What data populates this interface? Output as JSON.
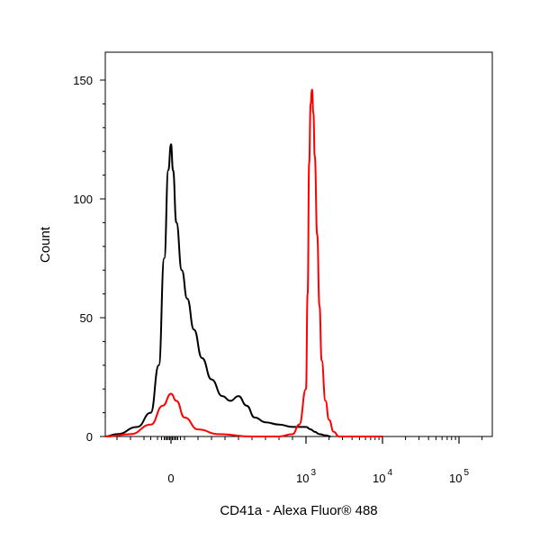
{
  "chart_data": {
    "type": "line",
    "title": "",
    "xlabel": "CD41a - Alexa Fluor® 488",
    "ylabel": "Count",
    "x_scale": "biexponential",
    "x_tick_labels": [
      {
        "base": "0",
        "exp": ""
      },
      {
        "base": "10",
        "exp": "3"
      },
      {
        "base": "10",
        "exp": "4"
      },
      {
        "base": "10",
        "exp": "5"
      }
    ],
    "y_ticks": [
      0,
      50,
      100,
      150
    ],
    "ylim": [
      0,
      158
    ],
    "grid": false,
    "series": [
      {
        "color": "#000000",
        "points": [
          [
            -600,
            0
          ],
          [
            -400,
            1
          ],
          [
            -250,
            4
          ],
          [
            -150,
            10
          ],
          [
            -90,
            30
          ],
          [
            -50,
            75
          ],
          [
            -20,
            112
          ],
          [
            0,
            123
          ],
          [
            15,
            112
          ],
          [
            40,
            90
          ],
          [
            80,
            70
          ],
          [
            120,
            58
          ],
          [
            170,
            45
          ],
          [
            230,
            33
          ],
          [
            300,
            24
          ],
          [
            380,
            17
          ],
          [
            440,
            15
          ],
          [
            500,
            17
          ],
          [
            560,
            13
          ],
          [
            620,
            8
          ],
          [
            700,
            6
          ],
          [
            800,
            5
          ],
          [
            900,
            4
          ],
          [
            1000,
            4
          ],
          [
            1150,
            3
          ],
          [
            1300,
            2
          ],
          [
            1500,
            1
          ],
          [
            1800,
            0.5
          ],
          [
            2100,
            0
          ]
        ]
      },
      {
        "color": "#ff0000",
        "points": [
          [
            -600,
            0
          ],
          [
            -300,
            1
          ],
          [
            -150,
            5
          ],
          [
            -60,
            13
          ],
          [
            0,
            18
          ],
          [
            40,
            15
          ],
          [
            100,
            8
          ],
          [
            200,
            3
          ],
          [
            350,
            1
          ],
          [
            600,
            0
          ],
          [
            800,
            0
          ],
          [
            900,
            1
          ],
          [
            950,
            5
          ],
          [
            1000,
            20
          ],
          [
            1050,
            60
          ],
          [
            1100,
            115
          ],
          [
            1150,
            140
          ],
          [
            1200,
            146
          ],
          [
            1250,
            136
          ],
          [
            1300,
            118
          ],
          [
            1400,
            85
          ],
          [
            1500,
            55
          ],
          [
            1600,
            32
          ],
          [
            1800,
            15
          ],
          [
            2000,
            7
          ],
          [
            2300,
            2
          ],
          [
            2700,
            0
          ],
          [
            10000,
            0
          ]
        ]
      }
    ]
  }
}
